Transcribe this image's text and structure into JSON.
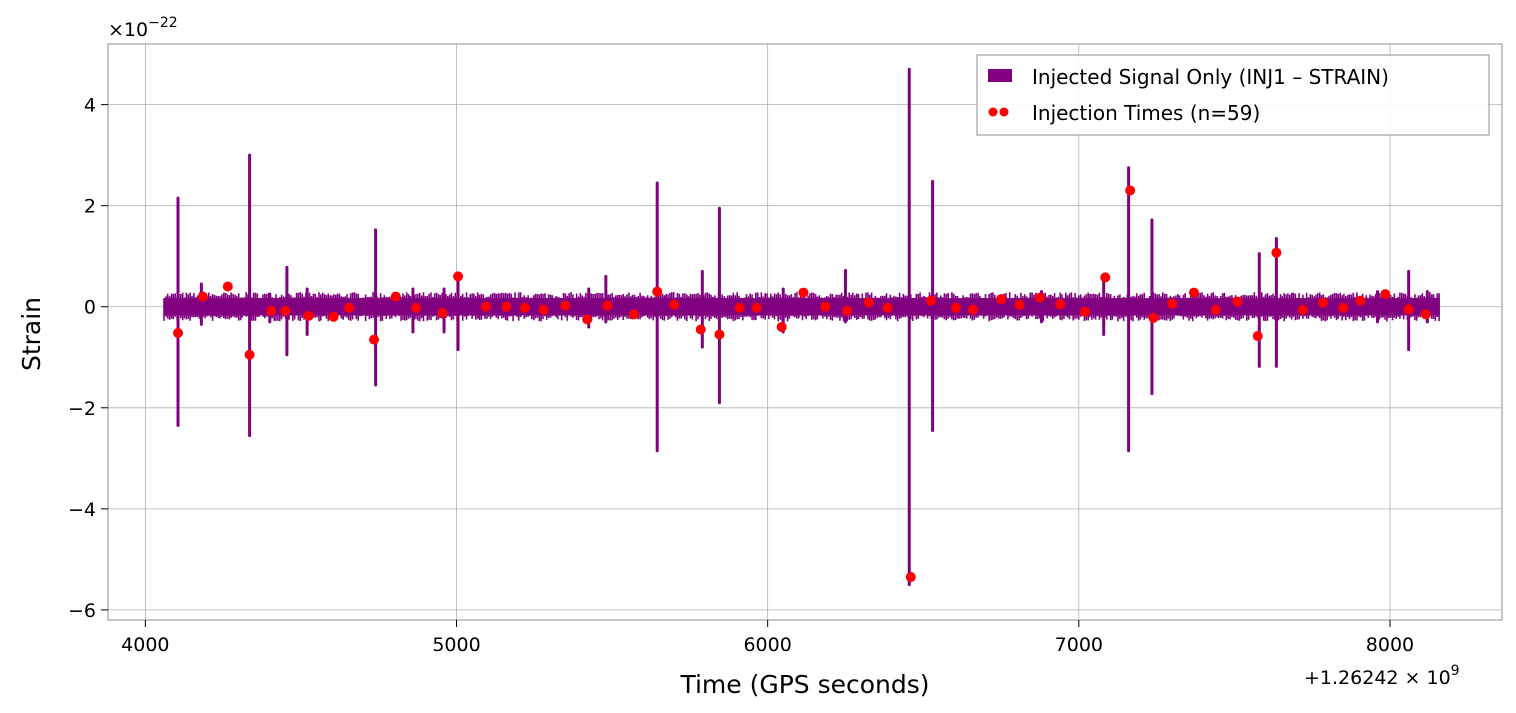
{
  "chart_data": {
    "type": "line",
    "title": "",
    "xlabel": "Time (GPS seconds)",
    "ylabel": "Strain",
    "x_offset_label": "+1.26242 × 10",
    "x_offset_exponent": "9",
    "y_scale_label": "×10",
    "y_scale_exponent": "−22",
    "xlim": [
      3880,
      8360
    ],
    "ylim": [
      -6.2,
      5.2
    ],
    "x_ticks": [
      4000,
      5000,
      6000,
      7000,
      8000
    ],
    "x_tick_labels": [
      "4000",
      "5000",
      "6000",
      "7000",
      "8000"
    ],
    "y_ticks": [
      -6,
      -4,
      -2,
      0,
      2,
      4
    ],
    "y_tick_labels": [
      "−6",
      "−4",
      "−2",
      "0",
      "2",
      "4"
    ],
    "grid": true,
    "legend_position": "top-right",
    "series": [
      {
        "name": "Injected Signal Only (INJ1 – STRAIN)",
        "kind": "line",
        "color": "#800080",
        "x_range": [
          4060,
          8160
        ],
        "noise_band": 0.17,
        "spikes": [
          {
            "x": 4105,
            "max": 2.15,
            "min": -2.35
          },
          {
            "x": 4180,
            "max": 0.45,
            "min": -0.35
          },
          {
            "x": 4335,
            "max": 3.0,
            "min": -2.55
          },
          {
            "x": 4400,
            "max": 0.25,
            "min": -0.3
          },
          {
            "x": 4455,
            "max": 0.78,
            "min": -0.95
          },
          {
            "x": 4520,
            "max": 0.35,
            "min": -0.55
          },
          {
            "x": 4740,
            "max": 1.52,
            "min": -1.55
          },
          {
            "x": 4860,
            "max": 0.35,
            "min": -0.5
          },
          {
            "x": 4960,
            "max": 0.35,
            "min": -0.5
          },
          {
            "x": 5005,
            "max": 0.6,
            "min": -0.85
          },
          {
            "x": 5425,
            "max": 0.35,
            "min": -0.4
          },
          {
            "x": 5480,
            "max": 0.6,
            "min": -0.3
          },
          {
            "x": 5645,
            "max": 2.45,
            "min": -2.85
          },
          {
            "x": 5790,
            "max": 0.7,
            "min": -0.8
          },
          {
            "x": 5845,
            "max": 1.95,
            "min": -1.9
          },
          {
            "x": 6050,
            "max": 0.35,
            "min": -0.5
          },
          {
            "x": 6250,
            "max": 0.72,
            "min": -0.3
          },
          {
            "x": 6455,
            "max": 4.7,
            "min": -5.5
          },
          {
            "x": 6530,
            "max": 2.48,
            "min": -2.45
          },
          {
            "x": 6880,
            "max": 0.3,
            "min": -0.3
          },
          {
            "x": 7080,
            "max": 0.55,
            "min": -0.55
          },
          {
            "x": 7160,
            "max": 2.75,
            "min": -2.85
          },
          {
            "x": 7235,
            "max": 1.72,
            "min": -1.72
          },
          {
            "x": 7580,
            "max": 1.05,
            "min": -1.18
          },
          {
            "x": 7635,
            "max": 1.35,
            "min": -1.18
          },
          {
            "x": 7960,
            "max": 0.3,
            "min": -0.3
          },
          {
            "x": 8060,
            "max": 0.7,
            "min": -0.85
          },
          {
            "x": 8120,
            "max": 0.3,
            "min": -0.3
          }
        ]
      },
      {
        "name": "Injection Times (n=59)",
        "kind": "scatter",
        "color": "#ff0000",
        "points": [
          {
            "x": 4105,
            "y": -0.52
          },
          {
            "x": 4185,
            "y": 0.2
          },
          {
            "x": 4265,
            "y": 0.4
          },
          {
            "x": 4335,
            "y": -0.95
          },
          {
            "x": 4405,
            "y": -0.08
          },
          {
            "x": 4450,
            "y": -0.08
          },
          {
            "x": 4525,
            "y": -0.18
          },
          {
            "x": 4605,
            "y": -0.2
          },
          {
            "x": 4655,
            "y": -0.02
          },
          {
            "x": 4735,
            "y": -0.65
          },
          {
            "x": 4805,
            "y": 0.2
          },
          {
            "x": 4870,
            "y": -0.02
          },
          {
            "x": 4955,
            "y": -0.12
          },
          {
            "x": 5005,
            "y": 0.6
          },
          {
            "x": 5095,
            "y": 0.0
          },
          {
            "x": 5160,
            "y": 0.0
          },
          {
            "x": 5220,
            "y": -0.02
          },
          {
            "x": 5280,
            "y": -0.06
          },
          {
            "x": 5350,
            "y": 0.02
          },
          {
            "x": 5420,
            "y": -0.25
          },
          {
            "x": 5485,
            "y": 0.02
          },
          {
            "x": 5570,
            "y": -0.15
          },
          {
            "x": 5645,
            "y": 0.3
          },
          {
            "x": 5700,
            "y": 0.04
          },
          {
            "x": 5785,
            "y": -0.45
          },
          {
            "x": 5845,
            "y": -0.55
          },
          {
            "x": 5910,
            "y": -0.02
          },
          {
            "x": 5965,
            "y": -0.02
          },
          {
            "x": 6045,
            "y": -0.4
          },
          {
            "x": 6115,
            "y": 0.28
          },
          {
            "x": 6185,
            "y": 0.0
          },
          {
            "x": 6255,
            "y": -0.08
          },
          {
            "x": 6325,
            "y": 0.08
          },
          {
            "x": 6385,
            "y": -0.02
          },
          {
            "x": 6460,
            "y": -5.35
          },
          {
            "x": 6525,
            "y": 0.12
          },
          {
            "x": 6605,
            "y": -0.02
          },
          {
            "x": 6660,
            "y": -0.06
          },
          {
            "x": 6750,
            "y": 0.15
          },
          {
            "x": 6810,
            "y": 0.04
          },
          {
            "x": 6875,
            "y": 0.18
          },
          {
            "x": 6940,
            "y": 0.05
          },
          {
            "x": 7020,
            "y": -0.1
          },
          {
            "x": 7085,
            "y": 0.58
          },
          {
            "x": 7165,
            "y": 2.3
          },
          {
            "x": 7240,
            "y": -0.22
          },
          {
            "x": 7300,
            "y": 0.06
          },
          {
            "x": 7370,
            "y": 0.28
          },
          {
            "x": 7440,
            "y": -0.06
          },
          {
            "x": 7510,
            "y": 0.1
          },
          {
            "x": 7575,
            "y": -0.58
          },
          {
            "x": 7635,
            "y": 1.07
          },
          {
            "x": 7720,
            "y": -0.06
          },
          {
            "x": 7785,
            "y": 0.08
          },
          {
            "x": 7850,
            "y": -0.02
          },
          {
            "x": 7905,
            "y": 0.12
          },
          {
            "x": 7985,
            "y": 0.25
          },
          {
            "x": 8060,
            "y": -0.05
          },
          {
            "x": 8115,
            "y": -0.15
          }
        ]
      }
    ]
  }
}
